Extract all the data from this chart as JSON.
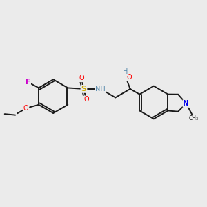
{
  "background_color": "#ebebeb",
  "bond_color": "#1a1a1a",
  "figsize": [
    3.0,
    3.0
  ],
  "dpi": 100,
  "colors": {
    "F": "#cc00cc",
    "O": "#ff0000",
    "S": "#ccaa00",
    "NH": "#5588aa",
    "H": "#5588aa",
    "N": "#0000ee",
    "C": "#1a1a1a"
  }
}
